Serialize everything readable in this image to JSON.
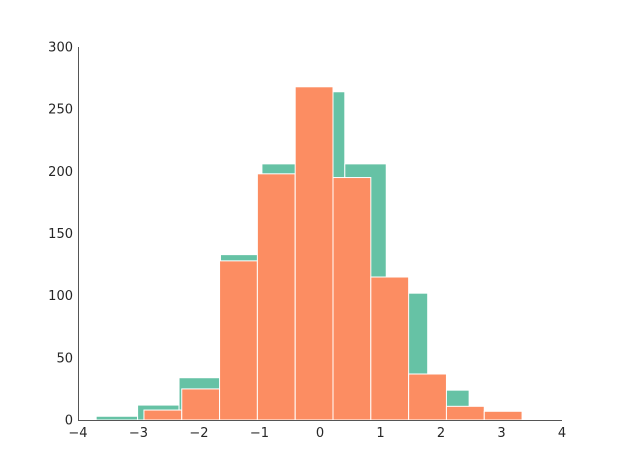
{
  "chart_data": {
    "type": "bar",
    "subtype": "histogram-overlay",
    "title": "",
    "xlabel": "",
    "ylabel": "",
    "xlim": [
      -4,
      4
    ],
    "ylim": [
      0,
      300
    ],
    "x_ticks": [
      -4,
      -3,
      -2,
      -1,
      0,
      1,
      2,
      3,
      4
    ],
    "x_tick_labels": [
      "−4",
      "−3",
      "−2",
      "−1",
      "0",
      "1",
      "2",
      "3",
      "4"
    ],
    "y_ticks": [
      0,
      50,
      100,
      150,
      200,
      250,
      300
    ],
    "y_tick_labels": [
      "0",
      "50",
      "100",
      "150",
      "200",
      "250",
      "300"
    ],
    "grid": false,
    "legend": null,
    "spines": [
      "left",
      "bottom"
    ],
    "series": [
      {
        "name": "series-1",
        "color": "#66c2a5",
        "bin_edges": [
          -3.7,
          -3.015,
          -2.33,
          -1.645,
          -0.96,
          -0.275,
          0.41,
          1.095,
          1.78,
          2.465,
          3.15
        ],
        "values": [
          3,
          12,
          34,
          133,
          206,
          264,
          206,
          102,
          24,
          5
        ]
      },
      {
        "name": "series-2",
        "color": "#fc8d62",
        "bin_edges": [
          -2.91,
          -2.285,
          -1.66,
          -1.035,
          -0.41,
          0.215,
          0.84,
          1.465,
          2.09,
          2.715,
          3.34
        ],
        "values": [
          8,
          25,
          128,
          198,
          268,
          195,
          115,
          37,
          11,
          7
        ]
      }
    ]
  }
}
